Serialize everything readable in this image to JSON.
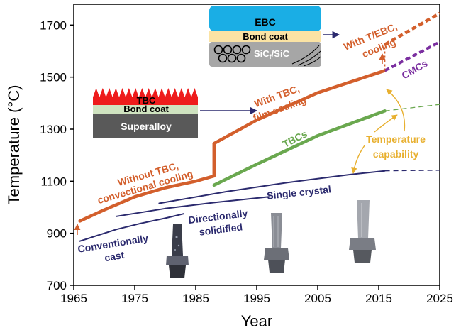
{
  "chart_data": {
    "type": "line",
    "xlabel": "Year",
    "ylabel": "Temperature (°C)",
    "xlim": [
      1965,
      2025
    ],
    "ylim": [
      700,
      1780
    ],
    "xticks": [
      1965,
      1975,
      1985,
      1995,
      2005,
      2015,
      2025
    ],
    "yticks": [
      700,
      900,
      1100,
      1300,
      1500,
      1700
    ],
    "grid": false,
    "series": [
      {
        "name": "Conventionally cast",
        "color": "#2b2a6e",
        "style": "solid",
        "x": [
          1966,
          1972,
          1976,
          1980,
          1983
        ],
        "y": [
          870,
          915,
          938,
          958,
          975
        ]
      },
      {
        "name": "Directionally solidified",
        "color": "#2b2a6e",
        "style": "solid",
        "x": [
          1972,
          1980,
          1988,
          1997
        ],
        "y": [
          965,
          995,
          1018,
          1040
        ]
      },
      {
        "name": "Single crystal",
        "color": "#2b2a6e",
        "style": "solid",
        "x": [
          1979,
          1990,
          2000,
          2010,
          2016
        ],
        "y": [
          1015,
          1060,
          1095,
          1125,
          1140
        ]
      },
      {
        "name": "Single crystal (projection)",
        "color": "#2b2a6e",
        "style": "dashed",
        "x": [
          2016,
          2025
        ],
        "y": [
          1140,
          1142
        ]
      },
      {
        "name": "Without TBC, convectional cooling",
        "color": "#d35f2c",
        "style": "solid",
        "x": [
          1966,
          1970,
          1975,
          1980,
          1985,
          1988
        ],
        "y": [
          947,
          990,
          1040,
          1075,
          1100,
          1120
        ]
      },
      {
        "name": "With TBC, film cooling",
        "color": "#d35f2c",
        "style": "solid",
        "x": [
          1988,
          1995,
          2005,
          2016
        ],
        "y": [
          1245,
          1335,
          1440,
          1525
        ]
      },
      {
        "name": "TBCs",
        "color": "#6aa84f",
        "style": "solid",
        "x": [
          1988,
          1995,
          2005,
          2016
        ],
        "y": [
          1085,
          1165,
          1275,
          1370
        ]
      },
      {
        "name": "TBCs (projection)",
        "color": "#6aa84f",
        "style": "dashed",
        "x": [
          2016,
          2025
        ],
        "y": [
          1370,
          1395
        ]
      },
      {
        "name": "With T/EBC, cooling",
        "color": "#d35f2c",
        "style": "dashed",
        "x": [
          2016,
          2025
        ],
        "y": [
          1625,
          1745
        ]
      },
      {
        "name": "CMCs",
        "color": "#7b2fa0",
        "style": "dashed",
        "x": [
          2016,
          2025
        ],
        "y": [
          1525,
          1635
        ]
      }
    ],
    "annotations": {
      "without_tbc": [
        "Without TBC,",
        "convectional cooling"
      ],
      "with_tbc": [
        "With TBC,",
        "film cooling"
      ],
      "with_tebc": [
        "With T/EBC,",
        "cooling"
      ],
      "tbcs": "TBCs",
      "cmcs": "CMCs",
      "temp_capability": [
        "Temperature",
        "capability"
      ],
      "single_crystal": "Single crystal",
      "ds": [
        "Directionally",
        "solidified"
      ],
      "cc": [
        "Conventionally",
        "cast"
      ]
    },
    "schematic_tbc": {
      "top": "TBC",
      "middle": "Bond coat",
      "bottom": "Superalloy"
    },
    "schematic_ebc": {
      "top": "EBC",
      "middle": "Bond coat",
      "bottom_main": "SiC",
      "bottom_sub": "f",
      "bottom_tail": "/SiC"
    },
    "colors": {
      "orange": "#d35f2c",
      "navy": "#2b2a6e",
      "green": "#6aa84f",
      "purple": "#7b2fa0",
      "gold": "#e8b030",
      "tbc_red": "#ee1c1c",
      "bond_tbc": "#cfe3c0",
      "superalloy": "#595959",
      "ebc_blue": "#1aaee5",
      "bond_ebc": "#fbe3a4",
      "sic_gray": "#a6a6a6"
    }
  }
}
